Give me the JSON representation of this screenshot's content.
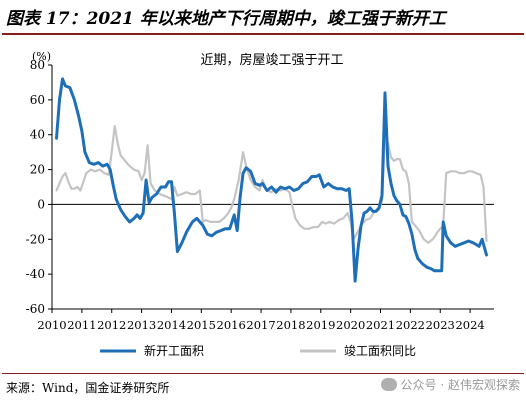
{
  "header": {
    "title": "图表 17：2021 年以来地产下行周期中，竣工强于新开工"
  },
  "footer": {
    "source": "来源：Wind，国金证券研究所",
    "watermark": "公众号 · 赵伟宏观探索"
  },
  "chart_data": {
    "type": "line",
    "annotation": "近期，房屋竣工强于开工",
    "unit_label": "(%)",
    "ylim": [
      -60,
      80
    ],
    "yticks": [
      80,
      60,
      40,
      20,
      0,
      -20,
      -40,
      -60
    ],
    "xlim": [
      2010,
      2024.8
    ],
    "xticks": [
      "2010",
      "2011",
      "2012",
      "2013",
      "2014",
      "2015",
      "2016",
      "2017",
      "2018",
      "2019",
      "2020",
      "2021",
      "2022",
      "2023",
      "2024"
    ],
    "legend_position": "bottom",
    "grid": false,
    "series": [
      {
        "name": "新开工面积",
        "color": "#1f6fb8",
        "points": [
          [
            2010.15,
            38
          ],
          [
            2010.25,
            60
          ],
          [
            2010.35,
            72
          ],
          [
            2010.45,
            68
          ],
          [
            2010.6,
            67
          ],
          [
            2010.75,
            60
          ],
          [
            2010.9,
            50
          ],
          [
            2011.0,
            42
          ],
          [
            2011.1,
            30
          ],
          [
            2011.25,
            24
          ],
          [
            2011.4,
            23
          ],
          [
            2011.55,
            24
          ],
          [
            2011.7,
            22
          ],
          [
            2011.85,
            23
          ],
          [
            2011.95,
            20
          ],
          [
            2012.05,
            11
          ],
          [
            2012.15,
            3
          ],
          [
            2012.3,
            -3
          ],
          [
            2012.45,
            -7
          ],
          [
            2012.6,
            -10
          ],
          [
            2012.75,
            -8
          ],
          [
            2012.85,
            -6
          ],
          [
            2012.95,
            -8
          ],
          [
            2013.05,
            -5
          ],
          [
            2013.15,
            14
          ],
          [
            2013.25,
            1
          ],
          [
            2013.35,
            4
          ],
          [
            2013.5,
            6
          ],
          [
            2013.65,
            10
          ],
          [
            2013.8,
            10
          ],
          [
            2013.9,
            13
          ],
          [
            2014.0,
            13
          ],
          [
            2014.1,
            -5
          ],
          [
            2014.2,
            -27
          ],
          [
            2014.35,
            -22
          ],
          [
            2014.5,
            -16
          ],
          [
            2014.7,
            -10
          ],
          [
            2014.85,
            -8
          ],
          [
            2014.95,
            -10
          ],
          [
            2015.05,
            -12
          ],
          [
            2015.2,
            -17
          ],
          [
            2015.35,
            -18
          ],
          [
            2015.5,
            -16
          ],
          [
            2015.65,
            -15
          ],
          [
            2015.8,
            -14
          ],
          [
            2015.95,
            -14
          ],
          [
            2016.1,
            -6
          ],
          [
            2016.2,
            -15
          ],
          [
            2016.3,
            4
          ],
          [
            2016.4,
            18
          ],
          [
            2016.5,
            21
          ],
          [
            2016.65,
            19
          ],
          [
            2016.8,
            12
          ],
          [
            2016.95,
            11
          ],
          [
            2017.05,
            12
          ],
          [
            2017.2,
            8
          ],
          [
            2017.35,
            10
          ],
          [
            2017.5,
            7
          ],
          [
            2017.65,
            10
          ],
          [
            2017.8,
            9
          ],
          [
            2017.95,
            10
          ],
          [
            2018.1,
            8
          ],
          [
            2018.25,
            9
          ],
          [
            2018.4,
            12
          ],
          [
            2018.55,
            13
          ],
          [
            2018.7,
            16
          ],
          [
            2018.85,
            16
          ],
          [
            2018.95,
            17
          ],
          [
            2019.1,
            10
          ],
          [
            2019.25,
            12
          ],
          [
            2019.4,
            10
          ],
          [
            2019.55,
            9
          ],
          [
            2019.7,
            9
          ],
          [
            2019.85,
            8
          ],
          [
            2019.95,
            9
          ],
          [
            2020.05,
            -10
          ],
          [
            2020.15,
            -44
          ],
          [
            2020.25,
            -25
          ],
          [
            2020.35,
            -12
          ],
          [
            2020.45,
            -5
          ],
          [
            2020.55,
            -4
          ],
          [
            2020.65,
            -2
          ],
          [
            2020.75,
            -4
          ],
          [
            2020.85,
            -4
          ],
          [
            2020.95,
            -2
          ],
          [
            2021.05,
            5
          ],
          [
            2021.15,
            64
          ],
          [
            2021.25,
            22
          ],
          [
            2021.35,
            12
          ],
          [
            2021.45,
            5
          ],
          [
            2021.55,
            2
          ],
          [
            2021.65,
            0
          ],
          [
            2021.75,
            -6
          ],
          [
            2021.85,
            -7
          ],
          [
            2021.95,
            -11
          ],
          [
            2022.05,
            -17
          ],
          [
            2022.15,
            -26
          ],
          [
            2022.25,
            -31
          ],
          [
            2022.4,
            -34
          ],
          [
            2022.55,
            -36
          ],
          [
            2022.7,
            -37
          ],
          [
            2022.8,
            -38
          ],
          [
            2022.9,
            -38
          ],
          [
            2023.05,
            -38
          ],
          [
            2023.1,
            -10
          ],
          [
            2023.2,
            -18
          ],
          [
            2023.35,
            -22
          ],
          [
            2023.5,
            -24
          ],
          [
            2023.65,
            -23
          ],
          [
            2023.8,
            -22
          ],
          [
            2023.95,
            -21
          ],
          [
            2024.1,
            -22
          ],
          [
            2024.2,
            -23
          ],
          [
            2024.3,
            -24
          ],
          [
            2024.4,
            -20
          ],
          [
            2024.55,
            -29
          ]
        ]
      },
      {
        "name": "竣工面积同比",
        "color": "#c4c4c4",
        "points": [
          [
            2010.15,
            8
          ],
          [
            2010.25,
            12
          ],
          [
            2010.35,
            16
          ],
          [
            2010.45,
            18
          ],
          [
            2010.55,
            13
          ],
          [
            2010.65,
            9
          ],
          [
            2010.75,
            9
          ],
          [
            2010.85,
            10
          ],
          [
            2010.95,
            8
          ],
          [
            2011.05,
            13
          ],
          [
            2011.15,
            18
          ],
          [
            2011.3,
            20
          ],
          [
            2011.45,
            19
          ],
          [
            2011.6,
            20
          ],
          [
            2011.75,
            18
          ],
          [
            2011.9,
            17
          ],
          [
            2012.0,
            30
          ],
          [
            2012.1,
            45
          ],
          [
            2012.2,
            35
          ],
          [
            2012.3,
            28
          ],
          [
            2012.45,
            25
          ],
          [
            2012.6,
            22
          ],
          [
            2012.75,
            20
          ],
          [
            2012.9,
            19
          ],
          [
            2013.0,
            14
          ],
          [
            2013.1,
            18
          ],
          [
            2013.2,
            34
          ],
          [
            2013.3,
            12
          ],
          [
            2013.45,
            8
          ],
          [
            2013.6,
            6
          ],
          [
            2013.75,
            5
          ],
          [
            2013.9,
            4
          ],
          [
            2014.0,
            3
          ],
          [
            2014.1,
            10
          ],
          [
            2014.2,
            5
          ],
          [
            2014.35,
            6
          ],
          [
            2014.5,
            7
          ],
          [
            2014.65,
            6
          ],
          [
            2014.8,
            6
          ],
          [
            2014.95,
            8
          ],
          [
            2015.05,
            -10
          ],
          [
            2015.15,
            -9
          ],
          [
            2015.3,
            -10
          ],
          [
            2015.45,
            -10
          ],
          [
            2015.6,
            -10
          ],
          [
            2015.75,
            -8
          ],
          [
            2015.9,
            -5
          ],
          [
            2016.0,
            -2
          ],
          [
            2016.1,
            3
          ],
          [
            2016.25,
            14
          ],
          [
            2016.4,
            30
          ],
          [
            2016.5,
            22
          ],
          [
            2016.65,
            14
          ],
          [
            2016.8,
            10
          ],
          [
            2016.95,
            8
          ],
          [
            2017.05,
            14
          ],
          [
            2017.2,
            8
          ],
          [
            2017.35,
            7
          ],
          [
            2017.5,
            9
          ],
          [
            2017.65,
            8
          ],
          [
            2017.8,
            9
          ],
          [
            2017.95,
            7
          ],
          [
            2018.05,
            -1
          ],
          [
            2018.15,
            -8
          ],
          [
            2018.3,
            -12
          ],
          [
            2018.45,
            -14
          ],
          [
            2018.6,
            -14
          ],
          [
            2018.75,
            -13
          ],
          [
            2018.9,
            -13
          ],
          [
            2019.05,
            -10
          ],
          [
            2019.15,
            -11
          ],
          [
            2019.3,
            -10
          ],
          [
            2019.45,
            -11
          ],
          [
            2019.6,
            -9
          ],
          [
            2019.75,
            -8
          ],
          [
            2019.9,
            -5
          ],
          [
            2020.0,
            -10
          ],
          [
            2020.1,
            -20
          ],
          [
            2020.2,
            -17
          ],
          [
            2020.35,
            -12
          ],
          [
            2020.5,
            -9
          ],
          [
            2020.65,
            -8
          ],
          [
            2020.8,
            -4
          ],
          [
            2020.95,
            -3
          ],
          [
            2021.05,
            2
          ],
          [
            2021.15,
            40
          ],
          [
            2021.25,
            35
          ],
          [
            2021.35,
            27
          ],
          [
            2021.45,
            25
          ],
          [
            2021.55,
            26
          ],
          [
            2021.65,
            26
          ],
          [
            2021.75,
            20
          ],
          [
            2021.85,
            19
          ],
          [
            2021.95,
            12
          ],
          [
            2022.05,
            -10
          ],
          [
            2022.15,
            -12
          ],
          [
            2022.3,
            -15
          ],
          [
            2022.45,
            -20
          ],
          [
            2022.6,
            -22
          ],
          [
            2022.75,
            -20
          ],
          [
            2022.9,
            -16
          ],
          [
            2023.0,
            -14
          ],
          [
            2023.1,
            -12
          ],
          [
            2023.2,
            18
          ],
          [
            2023.35,
            19
          ],
          [
            2023.5,
            19
          ],
          [
            2023.65,
            18
          ],
          [
            2023.8,
            18
          ],
          [
            2023.95,
            19
          ],
          [
            2024.05,
            19
          ],
          [
            2024.2,
            18
          ],
          [
            2024.35,
            17
          ],
          [
            2024.45,
            10
          ],
          [
            2024.55,
            -21
          ]
        ]
      }
    ]
  }
}
